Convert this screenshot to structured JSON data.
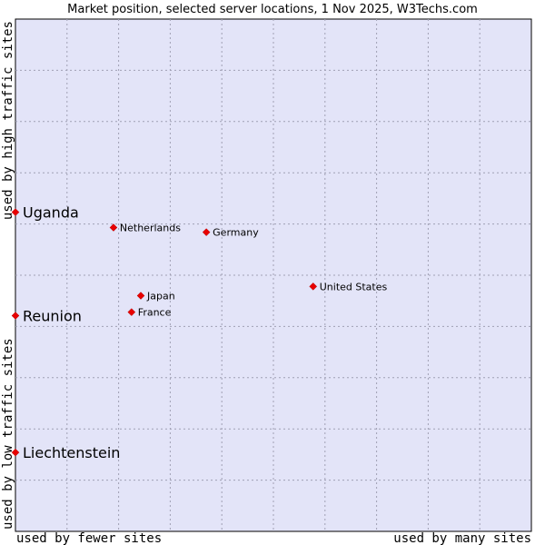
{
  "chart_data": {
    "type": "scatter",
    "title": "Market position, selected server locations, 1 Nov 2025, W3Techs.com",
    "xlabel_left": "used by fewer sites",
    "xlabel_right": "used by many sites",
    "ylabel_bottom": "used by low traffic sites",
    "ylabel_top": "used by high traffic sites",
    "xlim": [
      0,
      100
    ],
    "ylim": [
      0,
      100
    ],
    "grid": true,
    "background_color": "#e3e4f8",
    "point_color": "#e80000",
    "points": [
      {
        "label": "Uganda",
        "x": 0,
        "y": 62.3,
        "emphasis": true
      },
      {
        "label": "Reunion",
        "x": 0,
        "y": 42.1,
        "emphasis": true
      },
      {
        "label": "Liechtenstein",
        "x": 0,
        "y": 15.4,
        "emphasis": true
      },
      {
        "label": "Netherlands",
        "x": 19.0,
        "y": 59.3,
        "emphasis": false
      },
      {
        "label": "Germany",
        "x": 37.0,
        "y": 58.4,
        "emphasis": false
      },
      {
        "label": "United States",
        "x": 57.7,
        "y": 47.8,
        "emphasis": false
      },
      {
        "label": "Japan",
        "x": 24.3,
        "y": 46.0,
        "emphasis": false
      },
      {
        "label": "France",
        "x": 22.5,
        "y": 42.8,
        "emphasis": false
      }
    ]
  }
}
